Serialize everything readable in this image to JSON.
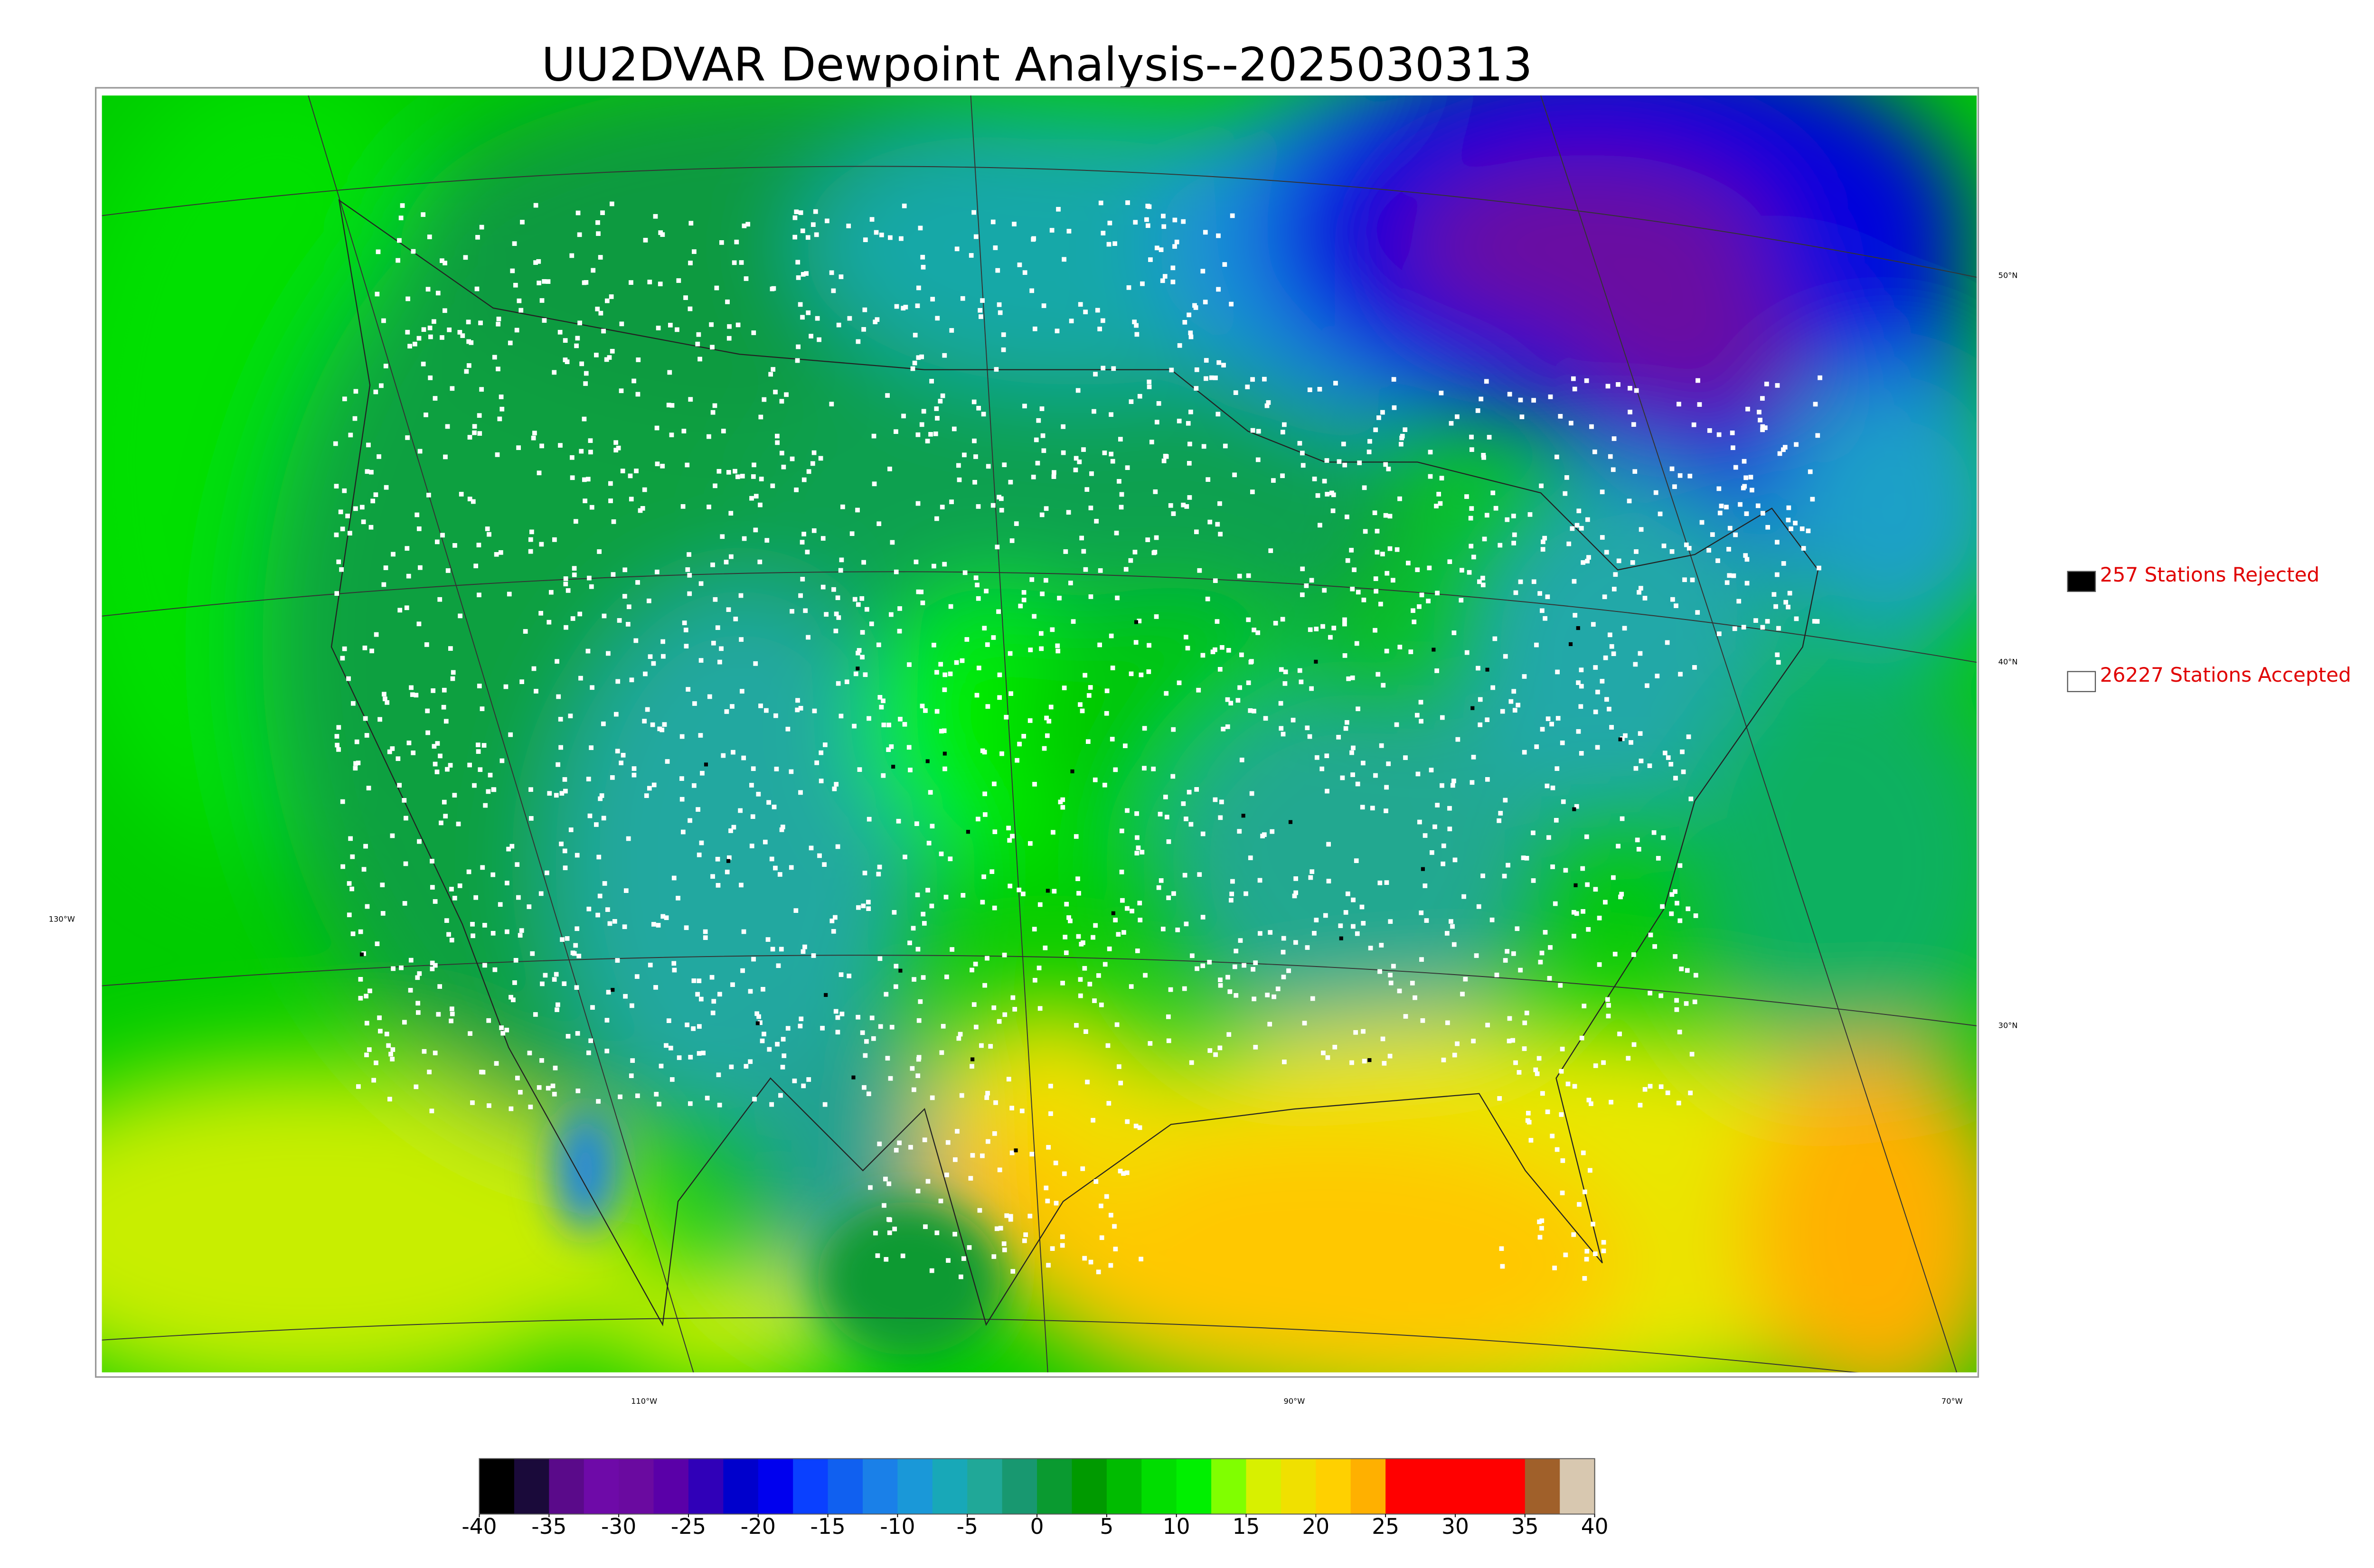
{
  "title": "UU2DVAR Dewpoint Analysis--2025030313",
  "legend": [
    {
      "label": "257 Stations Rejected",
      "color": "#000000"
    },
    {
      "label": "26227 Stations Accepted",
      "color": "#ffffff"
    }
  ],
  "graticule": {
    "lat_labels": [
      "50°N",
      "40°N",
      "30°N"
    ],
    "lon_labels": [
      "130°W",
      "110°W",
      "90°W",
      "70°W"
    ]
  },
  "colorbar": {
    "range": [
      -40,
      40
    ],
    "ticks": [
      -40,
      -35,
      -30,
      -25,
      -20,
      -15,
      -10,
      -5,
      0,
      5,
      10,
      15,
      20,
      25,
      30,
      35,
      40
    ],
    "colors": [
      "#000000",
      "#1a0a3a",
      "#5a0a8a",
      "#6e0aa8",
      "#6a0aa0",
      "#5a00a8",
      "#3000b8",
      "#0000cc",
      "#0000ee",
      "#0a40ff",
      "#1060f0",
      "#1a80e8",
      "#1a98d8",
      "#18a8b8",
      "#20a898",
      "#189870",
      "#0a9a30",
      "#009a00",
      "#00bb00",
      "#00dd00",
      "#00f000",
      "#80ff00",
      "#d8f000",
      "#f0e000",
      "#ffd000",
      "#ffb000",
      "#ff0000",
      "#ff0000",
      "#ff0000",
      "#ff0000",
      "#a0602a",
      "#d8c8b0"
    ]
  }
}
